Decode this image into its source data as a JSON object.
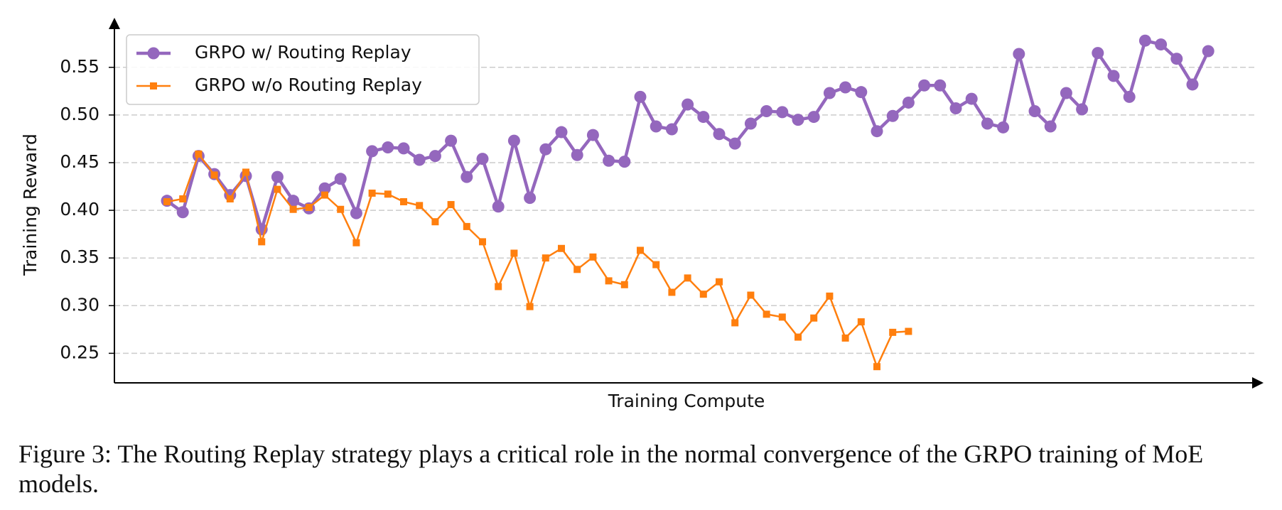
{
  "chart_data": {
    "type": "line",
    "x_label": "Training Compute",
    "y_label": "Training Reward",
    "categories": [
      null,
      null,
      null,
      null,
      null,
      null,
      null,
      null,
      null,
      null,
      null,
      null,
      null,
      null,
      null,
      null,
      null,
      null,
      null,
      null,
      null,
      null,
      null,
      null,
      null,
      null,
      null,
      null,
      null,
      null,
      null,
      null,
      null,
      null,
      null,
      null,
      null,
      null,
      null,
      null,
      null,
      null,
      null,
      null,
      null,
      null,
      null,
      null,
      null,
      null,
      null,
      null,
      null,
      null,
      null,
      null,
      null,
      null,
      null,
      null,
      null,
      null,
      null,
      null,
      null,
      null,
      null
    ],
    "series": [
      {
        "name": "GRPO w/ Routing Replay",
        "color": "#9467bd",
        "marker": "circle",
        "values": [
          0.41,
          0.398,
          0.457,
          0.438,
          0.416,
          0.436,
          0.38,
          0.435,
          0.41,
          0.402,
          0.423,
          0.433,
          0.397,
          0.462,
          0.466,
          0.465,
          0.453,
          0.457,
          0.473,
          0.435,
          0.454,
          0.404,
          0.473,
          0.413,
          0.464,
          0.482,
          0.458,
          0.479,
          0.452,
          0.451,
          0.519,
          0.488,
          0.485,
          0.511,
          0.498,
          0.48,
          0.47,
          0.491,
          0.504,
          0.503,
          0.495,
          0.498,
          0.523,
          0.529,
          0.524,
          0.483,
          0.499,
          0.513,
          0.531,
          0.531,
          0.507,
          0.517,
          0.491,
          0.487,
          0.564,
          0.504,
          0.488,
          0.523,
          0.506,
          0.565,
          0.541,
          0.519,
          0.578,
          0.574,
          0.559,
          0.532,
          0.567
        ]
      },
      {
        "name": "GRPO w/o Routing Replay",
        "color": "#ff7f0e",
        "marker": "square",
        "values": [
          0.409,
          0.412,
          0.459,
          0.437,
          0.412,
          0.44,
          0.367,
          0.422,
          0.401,
          0.403,
          0.416,
          0.401,
          0.366,
          0.418,
          0.417,
          0.409,
          0.405,
          0.388,
          0.406,
          0.383,
          0.367,
          0.32,
          0.355,
          0.299,
          0.35,
          0.36,
          0.338,
          0.351,
          0.326,
          0.322,
          0.358,
          0.343,
          0.314,
          0.329,
          0.312,
          0.325,
          0.282,
          0.311,
          0.291,
          0.288,
          0.267,
          0.287,
          0.31,
          0.266,
          0.283,
          0.236,
          0.272,
          0.273,
          null,
          null,
          null,
          null,
          null,
          null,
          null,
          null,
          null,
          null,
          null,
          null,
          null,
          null,
          null,
          null,
          null,
          null,
          null
        ]
      }
    ],
    "ylim": [
      0.219,
      0.602
    ],
    "yticks": [
      0.25,
      {
        "value": 0.3,
        "label": "0.30"
      },
      0.35,
      {
        "value": 0.4,
        "label": "0.40"
      },
      0.45,
      {
        "value": 0.5,
        "label": "0.50"
      },
      0.55
    ],
    "grid": true,
    "legend": "upper left"
  },
  "caption": "Figure 3: The Routing Replay strategy plays a critical role in the normal convergence of the GRPO training of MoE models."
}
